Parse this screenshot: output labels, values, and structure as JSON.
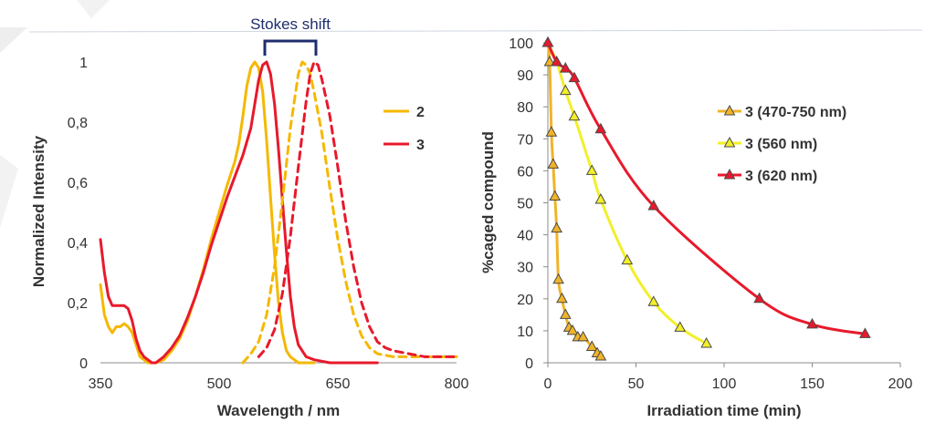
{
  "chart_data": [
    {
      "type": "line",
      "xlabel": "Wavelength / nm",
      "ylabel": "Normalized Intensity",
      "xlim": [
        350,
        800
      ],
      "ylim": [
        0,
        1
      ],
      "x_ticks": [
        "350",
        "500",
        "650",
        "800"
      ],
      "y_ticks": [
        "0",
        "0,2",
        "0,4",
        "0,6",
        "0,8",
        "1"
      ],
      "annotation": "Stokes shift",
      "legend_position": "right",
      "legend": [
        {
          "label": "2",
          "color": "#f5b800"
        },
        {
          "label": "3",
          "color": "#e8192c"
        }
      ],
      "series": [
        {
          "name": "2",
          "kind": "absorption",
          "style": "solid",
          "color": "#f5b800",
          "points": [
            [
              350,
              0.26
            ],
            [
              355,
              0.16
            ],
            [
              360,
              0.12
            ],
            [
              365,
              0.1
            ],
            [
              370,
              0.12
            ],
            [
              375,
              0.12
            ],
            [
              380,
              0.13
            ],
            [
              385,
              0.12
            ],
            [
              390,
              0.1
            ],
            [
              395,
              0.06
            ],
            [
              400,
              0.02
            ],
            [
              405,
              0.01
            ],
            [
              410,
              0.0
            ],
            [
              420,
              0.0
            ],
            [
              430,
              0.01
            ],
            [
              440,
              0.04
            ],
            [
              450,
              0.08
            ],
            [
              460,
              0.14
            ],
            [
              470,
              0.22
            ],
            [
              480,
              0.31
            ],
            [
              490,
              0.41
            ],
            [
              500,
              0.5
            ],
            [
              510,
              0.59
            ],
            [
              520,
              0.67
            ],
            [
              525,
              0.73
            ],
            [
              530,
              0.82
            ],
            [
              535,
              0.92
            ],
            [
              540,
              0.98
            ],
            [
              545,
              1.0
            ],
            [
              550,
              0.98
            ],
            [
              555,
              0.9
            ],
            [
              560,
              0.74
            ],
            [
              565,
              0.55
            ],
            [
              570,
              0.36
            ],
            [
              575,
              0.2
            ],
            [
              580,
              0.1
            ],
            [
              585,
              0.04
            ],
            [
              590,
              0.02
            ],
            [
              600,
              0.0
            ],
            [
              620,
              0.0
            ]
          ]
        },
        {
          "name": "3",
          "kind": "absorption",
          "style": "solid",
          "color": "#e8192c",
          "points": [
            [
              350,
              0.41
            ],
            [
              355,
              0.3
            ],
            [
              360,
              0.22
            ],
            [
              365,
              0.19
            ],
            [
              370,
              0.19
            ],
            [
              375,
              0.19
            ],
            [
              380,
              0.19
            ],
            [
              385,
              0.18
            ],
            [
              390,
              0.14
            ],
            [
              395,
              0.08
            ],
            [
              400,
              0.04
            ],
            [
              405,
              0.02
            ],
            [
              410,
              0.01
            ],
            [
              415,
              0.0
            ],
            [
              420,
              0.0
            ],
            [
              430,
              0.02
            ],
            [
              440,
              0.05
            ],
            [
              450,
              0.09
            ],
            [
              460,
              0.15
            ],
            [
              470,
              0.22
            ],
            [
              480,
              0.3
            ],
            [
              490,
              0.39
            ],
            [
              500,
              0.47
            ],
            [
              510,
              0.55
            ],
            [
              520,
              0.62
            ],
            [
              530,
              0.69
            ],
            [
              540,
              0.78
            ],
            [
              545,
              0.86
            ],
            [
              550,
              0.94
            ],
            [
              555,
              0.99
            ],
            [
              560,
              1.0
            ],
            [
              565,
              0.96
            ],
            [
              570,
              0.86
            ],
            [
              575,
              0.71
            ],
            [
              580,
              0.54
            ],
            [
              585,
              0.37
            ],
            [
              590,
              0.22
            ],
            [
              595,
              0.12
            ],
            [
              600,
              0.06
            ],
            [
              610,
              0.02
            ],
            [
              620,
              0.01
            ],
            [
              640,
              0.0
            ],
            [
              700,
              0.0
            ]
          ]
        },
        {
          "name": "2",
          "kind": "emission",
          "style": "dashed",
          "color": "#f5b800",
          "points": [
            [
              530,
              0.0
            ],
            [
              540,
              0.03
            ],
            [
              550,
              0.07
            ],
            [
              560,
              0.16
            ],
            [
              570,
              0.32
            ],
            [
              580,
              0.54
            ],
            [
              590,
              0.78
            ],
            [
              600,
              0.96
            ],
            [
              605,
              1.0
            ],
            [
              610,
              0.99
            ],
            [
              615,
              0.96
            ],
            [
              620,
              0.9
            ],
            [
              630,
              0.76
            ],
            [
              640,
              0.58
            ],
            [
              650,
              0.41
            ],
            [
              660,
              0.27
            ],
            [
              670,
              0.16
            ],
            [
              680,
              0.09
            ],
            [
              690,
              0.05
            ],
            [
              700,
              0.03
            ],
            [
              720,
              0.02
            ],
            [
              750,
              0.02
            ],
            [
              800,
              0.02
            ]
          ]
        },
        {
          "name": "3",
          "kind": "emission",
          "style": "dashed",
          "color": "#e8192c",
          "points": [
            [
              550,
              0.02
            ],
            [
              560,
              0.05
            ],
            [
              570,
              0.11
            ],
            [
              580,
              0.23
            ],
            [
              590,
              0.42
            ],
            [
              600,
              0.65
            ],
            [
              610,
              0.87
            ],
            [
              615,
              0.96
            ],
            [
              620,
              1.0
            ],
            [
              625,
              0.99
            ],
            [
              630,
              0.94
            ],
            [
              640,
              0.82
            ],
            [
              650,
              0.65
            ],
            [
              660,
              0.47
            ],
            [
              670,
              0.32
            ],
            [
              680,
              0.2
            ],
            [
              690,
              0.12
            ],
            [
              700,
              0.07
            ],
            [
              710,
              0.05
            ],
            [
              720,
              0.04
            ],
            [
              740,
              0.03
            ],
            [
              760,
              0.02
            ],
            [
              800,
              0.02
            ]
          ]
        }
      ]
    },
    {
      "type": "scatter",
      "xlabel": "Irradiation time (min)",
      "ylabel": "%caged compound",
      "xlim": [
        0,
        200
      ],
      "ylim": [
        0,
        100
      ],
      "x_ticks": [
        "0",
        "50",
        "100",
        "150",
        "200"
      ],
      "y_ticks": [
        "0",
        "10",
        "20",
        "30",
        "40",
        "50",
        "60",
        "70",
        "80",
        "90",
        "100"
      ],
      "legend_position": "right",
      "legend": [
        {
          "label": "3 (470-750 nm)",
          "color": "#f0b429"
        },
        {
          "label": "3 (560 nm)",
          "color": "#f2ef2a"
        },
        {
          "label": "3 (620 nm)",
          "color": "#e8192c"
        }
      ],
      "series": [
        {
          "name": "3 (470-750 nm)",
          "line_color": "#f0b429",
          "marker_fill": "#f0b429",
          "x": [
            0,
            1,
            2,
            3,
            4,
            5,
            6,
            8,
            10,
            12,
            14,
            17,
            20,
            25,
            28,
            30
          ],
          "y": [
            100,
            94,
            72,
            62,
            52,
            42,
            26,
            20,
            15,
            11,
            10,
            8,
            8,
            5,
            3,
            2
          ]
        },
        {
          "name": "3 (560 nm)",
          "line_color": "#f2ef2a",
          "marker_fill": "#f2ef2a",
          "x": [
            0,
            5,
            10,
            15,
            25,
            30,
            45,
            60,
            75,
            90
          ],
          "y": [
            100,
            94,
            85,
            77,
            60,
            51,
            32,
            19,
            11,
            6
          ]
        },
        {
          "name": "3 (620 nm)",
          "line_color": "#e8192c",
          "marker_fill": "#e8192c",
          "x": [
            0,
            5,
            10,
            15,
            30,
            60,
            120,
            150,
            180
          ],
          "y": [
            100,
            94,
            92,
            89,
            73,
            49,
            20,
            12,
            9
          ]
        }
      ]
    }
  ]
}
